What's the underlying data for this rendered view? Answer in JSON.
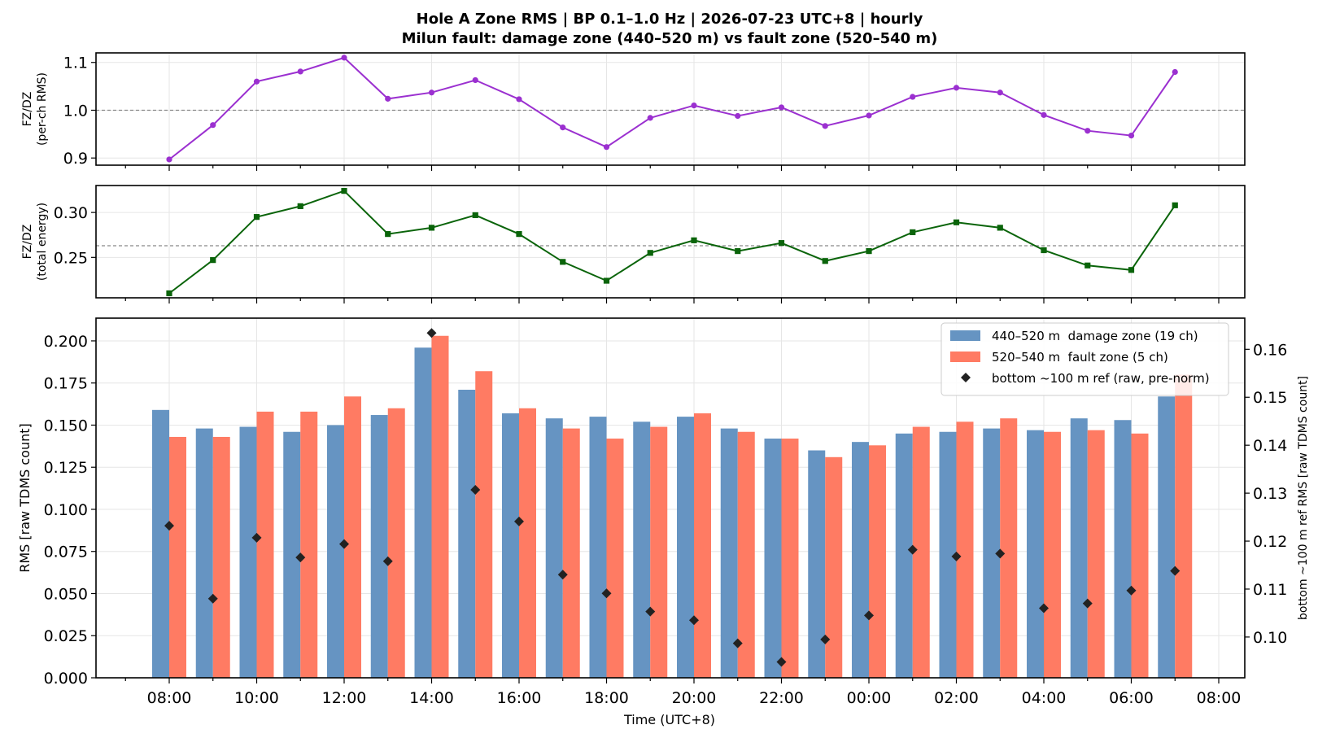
{
  "title": {
    "line1": "Hole A Zone RMS  |  BP 0.1–1.0 Hz  |  2026-07-23 UTC+8  |  hourly",
    "line2": "Milun fault: damage zone (440–520 m) vs fault zone (520–540 m)"
  },
  "colors": {
    "ratio_rms": "#9b30d0",
    "ratio_energy": "#0a640a",
    "damage_zone": "#6694c2",
    "fault_zone": "#ff7b63",
    "reference": "#222222",
    "ref_line": "#888888"
  },
  "chart_data": {
    "type": "bar",
    "x": {
      "label": "Time (UTC+8)",
      "hours": [
        "08:00",
        "09:00",
        "10:00",
        "11:00",
        "12:00",
        "13:00",
        "14:00",
        "15:00",
        "16:00",
        "17:00",
        "18:00",
        "19:00",
        "20:00",
        "21:00",
        "22:00",
        "23:00",
        "00:00",
        "01:00",
        "02:00",
        "03:00",
        "04:00",
        "05:00",
        "06:00",
        "07:00"
      ],
      "tick_labels": [
        "08:00",
        "10:00",
        "12:00",
        "14:00",
        "16:00",
        "18:00",
        "20:00",
        "22:00",
        "00:00",
        "02:00",
        "04:00",
        "06:00",
        "08:00"
      ]
    },
    "panels": [
      {
        "type": "line",
        "ylabel": [
          "FZ/DZ",
          "(per-ch RMS)"
        ],
        "ylim": [
          0.885,
          1.12
        ],
        "yticks": [
          "0.9",
          "1.0",
          "1.1"
        ],
        "ref_line": 1.0,
        "marker": "circle",
        "values": [
          0.897,
          0.969,
          1.06,
          1.081,
          1.11,
          1.024,
          1.037,
          1.063,
          1.023,
          0.964,
          0.923,
          0.984,
          1.01,
          0.988,
          1.006,
          0.967,
          0.989,
          1.028,
          1.047,
          1.037,
          0.99,
          0.957,
          0.947,
          1.08
        ]
      },
      {
        "type": "line",
        "ylabel": [
          "FZ/DZ",
          "(total energy)"
        ],
        "ylim": [
          0.205,
          0.33
        ],
        "yticks": [
          "0.25",
          "0.30"
        ],
        "ref_line": 0.263,
        "marker": "square",
        "values": [
          0.21,
          0.247,
          0.295,
          0.307,
          0.324,
          0.276,
          0.283,
          0.297,
          0.276,
          0.245,
          0.224,
          0.255,
          0.269,
          0.257,
          0.266,
          0.246,
          0.257,
          0.278,
          0.289,
          0.283,
          0.258,
          0.241,
          0.236,
          0.308
        ]
      }
    ],
    "ylabel": "RMS  [raw TDMS count]",
    "ylim": [
      0,
      0.2135
    ],
    "yticks": [
      "0.000",
      "0.025",
      "0.050",
      "0.075",
      "0.100",
      "0.125",
      "0.150",
      "0.175",
      "0.200"
    ],
    "y2label": "bottom ~100 m ref RMS  [raw TDMS count]",
    "y2lim": [
      0.0915,
      0.1665
    ],
    "y2ticks": [
      "0.10",
      "0.11",
      "0.12",
      "0.13",
      "0.14",
      "0.15",
      "0.16"
    ],
    "legend_position": "top-right",
    "series": [
      {
        "name": "440–520 m  damage zone (19 ch)",
        "type": "bar",
        "values": [
          0.159,
          0.148,
          0.149,
          0.146,
          0.15,
          0.156,
          0.196,
          0.171,
          0.157,
          0.154,
          0.155,
          0.152,
          0.155,
          0.148,
          0.142,
          0.135,
          0.14,
          0.145,
          0.146,
          0.148,
          0.147,
          0.154,
          0.153,
          0.167
        ]
      },
      {
        "name": "520–540 m  fault zone (5 ch)",
        "type": "bar",
        "values": [
          0.143,
          0.143,
          0.158,
          0.158,
          0.167,
          0.16,
          0.203,
          0.182,
          0.16,
          0.148,
          0.142,
          0.149,
          0.157,
          0.146,
          0.142,
          0.131,
          0.138,
          0.149,
          0.152,
          0.154,
          0.146,
          0.147,
          0.145,
          0.18
        ]
      },
      {
        "name": "bottom ~100 m ref (raw, pre-norm)",
        "type": "scatter",
        "axis": "right",
        "values": [
          0.1232,
          0.108,
          0.1207,
          0.1166,
          0.1194,
          0.1158,
          0.1634,
          0.1307,
          0.1241,
          0.113,
          0.1091,
          0.1053,
          0.1035,
          0.0987,
          0.0948,
          0.0995,
          0.1045,
          0.1182,
          0.1168,
          0.1174,
          0.106,
          0.107,
          0.1097,
          0.1138
        ]
      }
    ]
  }
}
